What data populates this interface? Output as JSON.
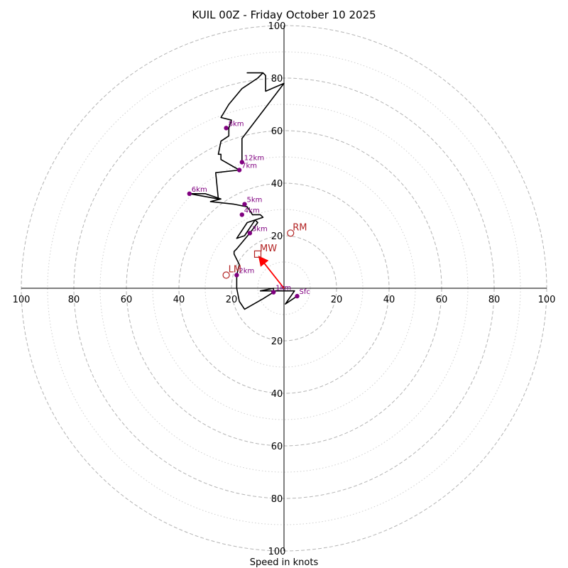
{
  "chart_data": {
    "type": "hodograph",
    "title": "KUIL 00Z - Friday October 10 2025",
    "xlabel": "Speed in knots",
    "units": "knots",
    "range": [
      -100,
      100
    ],
    "ring_major": [
      20,
      40,
      60,
      80,
      100
    ],
    "ring_minor": [
      10,
      30,
      50,
      70,
      90
    ],
    "tick_labels": {
      "left": [
        "100",
        "80",
        "60",
        "40",
        "20"
      ],
      "right": [
        "20",
        "40",
        "60",
        "80",
        "100"
      ],
      "top": [
        "100",
        "80",
        "60",
        "40",
        "20"
      ],
      "bottom": [
        "20",
        "40",
        "60",
        "80",
        "100"
      ]
    },
    "line_color": "#000000",
    "point_color": "#800080",
    "marker_color": "#b22222",
    "trace": [
      [
        5,
        -3
      ],
      [
        0.5,
        -6
      ],
      [
        4,
        -1
      ],
      [
        -9,
        -1
      ],
      [
        -4,
        0
      ],
      [
        -4,
        -1.5
      ],
      [
        -8,
        -4
      ],
      [
        -15,
        -8
      ],
      [
        -17,
        -5
      ],
      [
        -18,
        0
      ],
      [
        -18,
        5
      ],
      [
        -17,
        9
      ],
      [
        -19,
        13
      ],
      [
        -19,
        14
      ],
      [
        -18,
        15
      ],
      [
        -13,
        21
      ],
      [
        -10,
        25
      ],
      [
        -11,
        26
      ],
      [
        -15,
        20
      ],
      [
        -18,
        19
      ],
      [
        -14,
        25
      ],
      [
        -8,
        27
      ],
      [
        -9,
        28
      ],
      [
        -12,
        28
      ],
      [
        -14,
        31
      ],
      [
        -19,
        32
      ],
      [
        -28,
        33
      ],
      [
        -24,
        34
      ],
      [
        -30,
        36
      ],
      [
        -36,
        36
      ],
      [
        -25,
        34
      ],
      [
        -26,
        44
      ],
      [
        -17,
        45
      ],
      [
        -24,
        49
      ],
      [
        -24,
        51
      ],
      [
        -25,
        51
      ],
      [
        -24,
        56
      ],
      [
        -21,
        58
      ],
      [
        -21,
        61
      ],
      [
        -20,
        64
      ],
      [
        -24,
        65
      ],
      [
        -21,
        70
      ],
      [
        -16,
        76
      ],
      [
        -10,
        80
      ],
      [
        -8,
        82
      ],
      [
        -14,
        82
      ],
      [
        -8,
        82
      ],
      [
        -7,
        81
      ],
      [
        -7,
        75
      ],
      [
        0,
        78
      ],
      [
        -16,
        57
      ],
      [
        -16,
        48
      ]
    ],
    "height_points": [
      {
        "label": "Sfc",
        "u": 5,
        "v": -3
      },
      {
        "label": "1km",
        "u": -4,
        "v": -1.5
      },
      {
        "label": "2km",
        "u": -18,
        "v": 5
      },
      {
        "label": "3km",
        "u": -13,
        "v": 21
      },
      {
        "label": "4km",
        "u": -16,
        "v": 28
      },
      {
        "label": "5km",
        "u": -15,
        "v": 32
      },
      {
        "label": "6km",
        "u": -36,
        "v": 36
      },
      {
        "label": "7km",
        "u": -17,
        "v": 45
      },
      {
        "label": "8km",
        "u": -22,
        "v": 61
      },
      {
        "label": "12km",
        "u": -16,
        "v": 48
      }
    ],
    "storm_motion": {
      "rm": {
        "label": "RM",
        "u": 2.5,
        "v": 21
      },
      "lm": {
        "label": "LM",
        "u": -22,
        "v": 5
      },
      "mw": {
        "label": "MW",
        "u": -10,
        "v": 13
      },
      "shear_vector_from": [
        0,
        0
      ]
    }
  }
}
